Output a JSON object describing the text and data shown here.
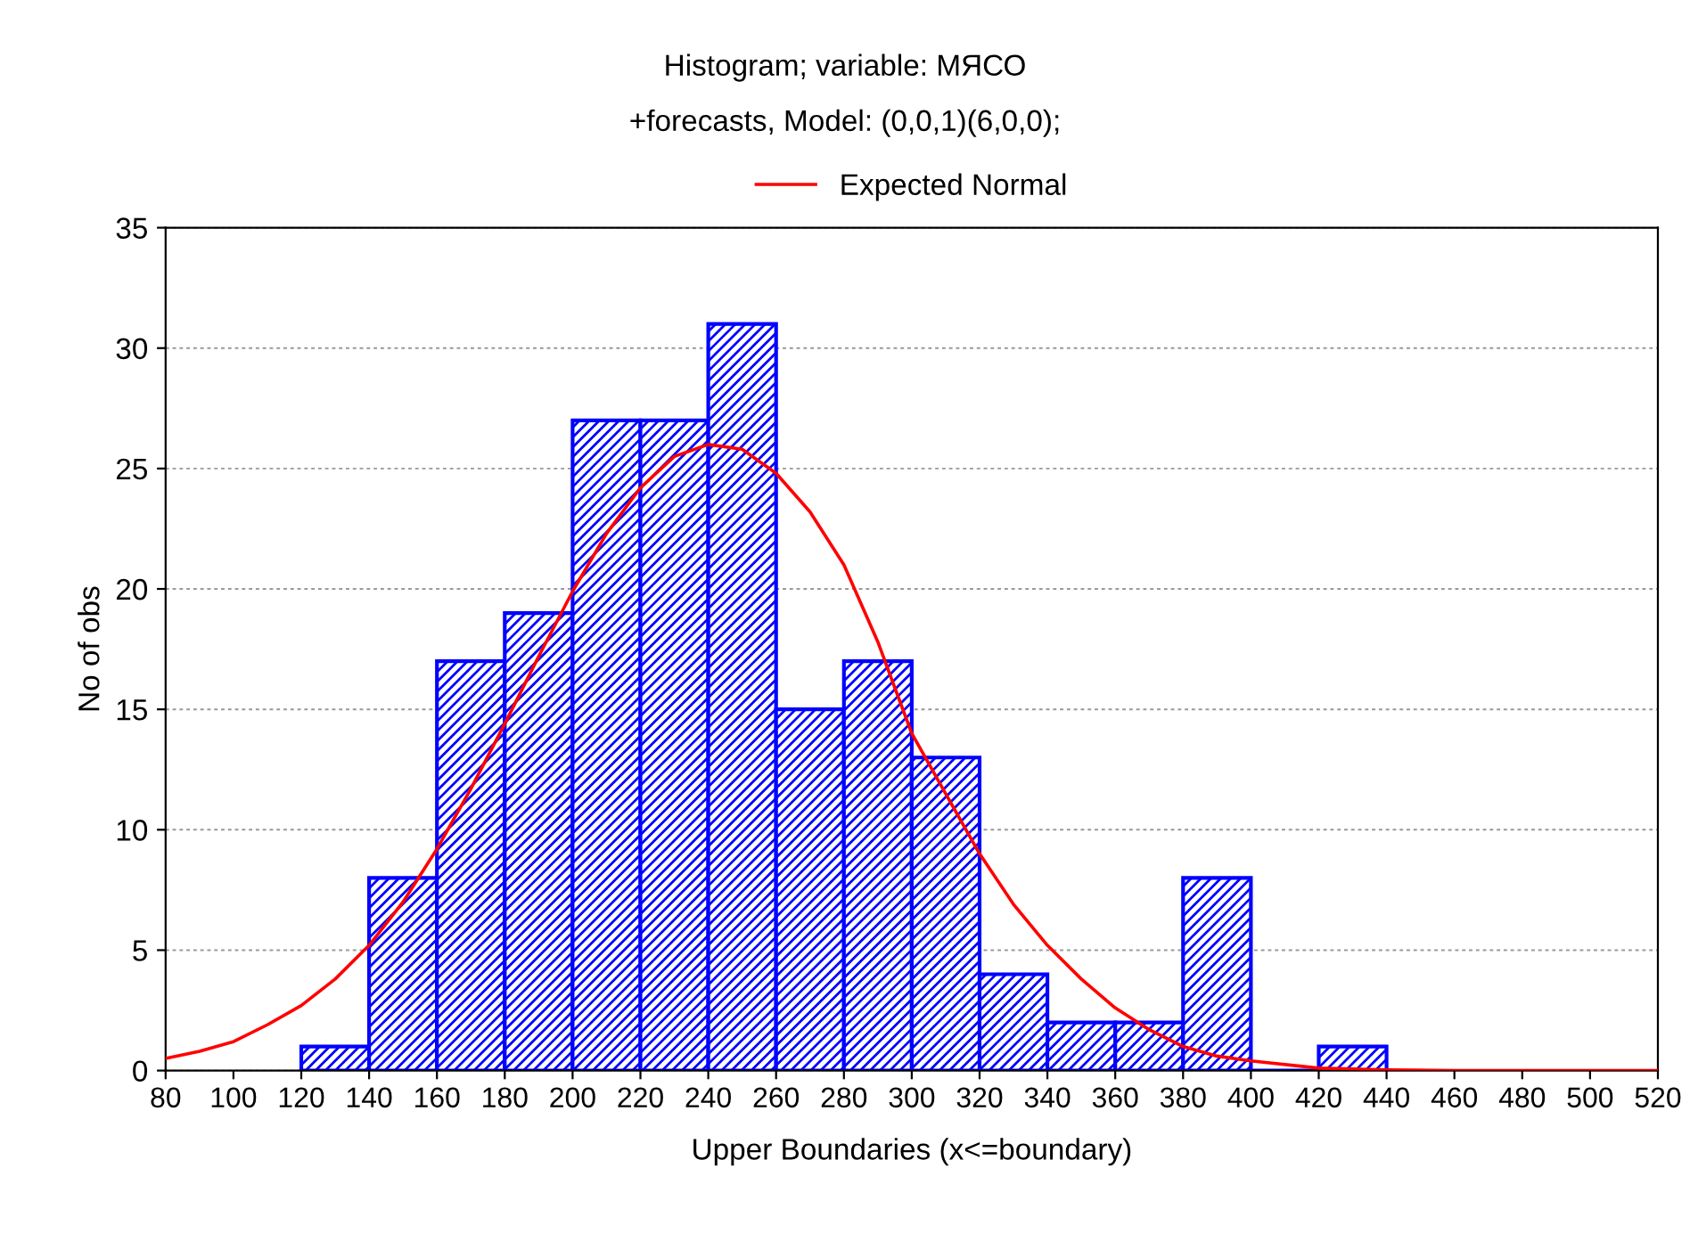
{
  "chart_data": {
    "type": "histogram",
    "title": "Histogram; variable: МЯСО",
    "subtitle": "+forecasts, Model: (0,0,1)(6,0,0);",
    "xlabel": "Upper Boundaries (x<=boundary)",
    "ylabel": "No of obs",
    "bins": [
      120,
      140,
      160,
      180,
      200,
      220,
      240,
      260,
      280,
      300,
      320,
      340,
      360,
      380,
      400,
      420,
      440
    ],
    "values": [
      1,
      8,
      17,
      19,
      27,
      27,
      31,
      15,
      17,
      13,
      4,
      2,
      2,
      8,
      0,
      1
    ],
    "color": "#0000ff",
    "series": [
      {
        "name": "Expected Normal",
        "type": "line",
        "color": "#ff0000",
        "x": [
          80,
          90,
          100,
          110,
          120,
          130,
          140,
          150,
          160,
          170,
          180,
          190,
          200,
          210,
          220,
          230,
          240,
          250,
          260,
          270,
          280,
          290,
          300,
          310,
          320,
          330,
          340,
          350,
          360,
          370,
          380,
          390,
          400,
          420,
          440,
          460,
          520
        ],
        "values": [
          0.5,
          0.8,
          1.2,
          1.9,
          2.7,
          3.8,
          5.2,
          7.0,
          9.2,
          11.7,
          14.4,
          17.2,
          19.9,
          22.3,
          24.2,
          25.5,
          26.0,
          25.8,
          24.8,
          23.2,
          21.0,
          17.8,
          14.0,
          11.5,
          9.0,
          6.9,
          5.2,
          3.8,
          2.6,
          1.7,
          1.0,
          0.6,
          0.4,
          0.1,
          0.03,
          0,
          0
        ]
      }
    ],
    "xlim": [
      80,
      520
    ],
    "xticks": [
      80,
      100,
      120,
      140,
      160,
      180,
      200,
      220,
      240,
      260,
      280,
      300,
      320,
      340,
      360,
      380,
      400,
      420,
      440,
      460,
      480,
      500,
      520
    ],
    "ylim": [
      0,
      35
    ],
    "yticks": [
      0,
      5,
      10,
      15,
      20,
      25,
      30,
      35
    ],
    "grid": "y",
    "legend": "top",
    "line_style": "solid",
    "marker": "none"
  }
}
